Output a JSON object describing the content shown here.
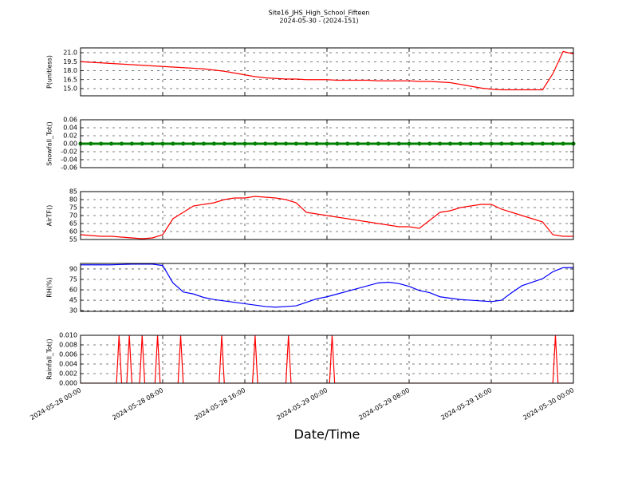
{
  "chart_data": [
    {
      "type": "line",
      "title": "Site16_JHS_High_School_Fifteen",
      "subtitle": "2024-05-30 - (2024-151)",
      "ylabel": "P(unitless)",
      "x": [
        "2024-05-28 00:00",
        "2024-05-28 01:00",
        "2024-05-28 02:00",
        "2024-05-28 03:00",
        "2024-05-28 04:00",
        "2024-05-28 05:00",
        "2024-05-28 06:00",
        "2024-05-28 07:00",
        "2024-05-28 08:00",
        "2024-05-28 09:00",
        "2024-05-28 10:00",
        "2024-05-28 11:00",
        "2024-05-28 12:00",
        "2024-05-28 13:00",
        "2024-05-28 14:00",
        "2024-05-28 15:00",
        "2024-05-28 16:00",
        "2024-05-28 17:00",
        "2024-05-28 18:00",
        "2024-05-28 19:00",
        "2024-05-28 20:00",
        "2024-05-28 21:00",
        "2024-05-28 22:00",
        "2024-05-28 23:00",
        "2024-05-29 00:00",
        "2024-05-29 01:00",
        "2024-05-29 02:00",
        "2024-05-29 03:00",
        "2024-05-29 04:00",
        "2024-05-29 05:00",
        "2024-05-29 06:00",
        "2024-05-29 07:00",
        "2024-05-29 08:00",
        "2024-05-29 09:00",
        "2024-05-29 10:00",
        "2024-05-29 11:00",
        "2024-05-29 12:00",
        "2024-05-29 13:00",
        "2024-05-29 14:00",
        "2024-05-29 15:00",
        "2024-05-29 16:00",
        "2024-05-29 17:00",
        "2024-05-29 18:00",
        "2024-05-29 19:00",
        "2024-05-29 20:00",
        "2024-05-29 21:00",
        "2024-05-29 22:00",
        "2024-05-29 23:00",
        "2024-05-30 00:00"
      ],
      "series": [
        {
          "name": "P",
          "color": "#ff0000",
          "values": [
            19.5,
            19.4,
            19.3,
            19.2,
            19.1,
            19.0,
            18.9,
            18.8,
            18.7,
            18.6,
            18.5,
            18.4,
            18.3,
            18.1,
            17.9,
            17.6,
            17.3,
            17.0,
            16.8,
            16.7,
            16.6,
            16.6,
            16.5,
            16.5,
            16.5,
            16.4,
            16.4,
            16.4,
            16.4,
            16.3,
            16.3,
            16.3,
            16.3,
            16.2,
            16.2,
            16.1,
            16.0,
            15.7,
            15.4,
            15.1,
            14.9,
            14.8,
            14.8,
            14.8,
            14.8,
            14.8,
            17.5,
            21.2,
            20.8
          ]
        }
      ],
      "xlim": [
        "2024-05-28 00:00",
        "2024-05-30 00:00"
      ],
      "xticks": [
        "2024-05-28 00:00",
        "2024-05-28 08:00",
        "2024-05-28 16:00",
        "2024-05-29 00:00",
        "2024-05-29 08:00",
        "2024-05-29 16:00",
        "2024-05-30 00:00"
      ],
      "ylim": [
        13.8,
        21.8
      ],
      "yticks": [
        {
          "value": 15,
          "label": "15.0"
        },
        16.5,
        {
          "value": 18,
          "label": "18.0"
        },
        19.5,
        {
          "value": 21,
          "label": "21.0"
        }
      ],
      "grid": true
    },
    {
      "type": "line",
      "ylabel": "Snowfall_Tot()",
      "markers": true,
      "x": [
        "2024-05-28 00:00",
        "2024-05-28 01:00",
        "2024-05-28 02:00",
        "2024-05-28 03:00",
        "2024-05-28 04:00",
        "2024-05-28 05:00",
        "2024-05-28 06:00",
        "2024-05-28 07:00",
        "2024-05-28 08:00",
        "2024-05-28 09:00",
        "2024-05-28 10:00",
        "2024-05-28 11:00",
        "2024-05-28 12:00",
        "2024-05-28 13:00",
        "2024-05-28 14:00",
        "2024-05-28 15:00",
        "2024-05-28 16:00",
        "2024-05-28 17:00",
        "2024-05-28 18:00",
        "2024-05-28 19:00",
        "2024-05-28 20:00",
        "2024-05-28 21:00",
        "2024-05-28 22:00",
        "2024-05-28 23:00",
        "2024-05-29 00:00",
        "2024-05-29 01:00",
        "2024-05-29 02:00",
        "2024-05-29 03:00",
        "2024-05-29 04:00",
        "2024-05-29 05:00",
        "2024-05-29 06:00",
        "2024-05-29 07:00",
        "2024-05-29 08:00",
        "2024-05-29 09:00",
        "2024-05-29 10:00",
        "2024-05-29 11:00",
        "2024-05-29 12:00",
        "2024-05-29 13:00",
        "2024-05-29 14:00",
        "2024-05-29 15:00",
        "2024-05-29 16:00",
        "2024-05-29 17:00",
        "2024-05-29 18:00",
        "2024-05-29 19:00",
        "2024-05-29 20:00",
        "2024-05-29 21:00",
        "2024-05-29 22:00",
        "2024-05-29 23:00",
        "2024-05-30 00:00"
      ],
      "series": [
        {
          "name": "Snowfall_Tot",
          "color": "#008000",
          "values": [
            0,
            0,
            0,
            0,
            0,
            0,
            0,
            0,
            0,
            0,
            0,
            0,
            0,
            0,
            0,
            0,
            0,
            0,
            0,
            0,
            0,
            0,
            0,
            0,
            0,
            0,
            0,
            0,
            0,
            0,
            0,
            0,
            0,
            0,
            0,
            0,
            0,
            0,
            0,
            0,
            0,
            0,
            0,
            0,
            0,
            0,
            0,
            0,
            0
          ]
        }
      ],
      "xlim": [
        "2024-05-28 00:00",
        "2024-05-30 00:00"
      ],
      "xticks": [
        "2024-05-28 00:00",
        "2024-05-28 08:00",
        "2024-05-28 16:00",
        "2024-05-29 00:00",
        "2024-05-29 08:00",
        "2024-05-29 16:00",
        "2024-05-30 00:00"
      ],
      "ylim": [
        -0.06,
        0.06
      ],
      "yticks": [
        0.06,
        0.04,
        0.02,
        {
          "value": 0,
          "label": "0.00"
        },
        -0.02,
        -0.04,
        -0.06
      ],
      "grid": true
    },
    {
      "type": "line",
      "ylabel": "AirTF()",
      "x": [
        "2024-05-28 00:00",
        "2024-05-28 01:00",
        "2024-05-28 02:00",
        "2024-05-28 03:00",
        "2024-05-28 04:00",
        "2024-05-28 05:00",
        "2024-05-28 06:00",
        "2024-05-28 07:00",
        "2024-05-28 08:00",
        "2024-05-28 09:00",
        "2024-05-28 10:00",
        "2024-05-28 11:00",
        "2024-05-28 12:00",
        "2024-05-28 13:00",
        "2024-05-28 14:00",
        "2024-05-28 15:00",
        "2024-05-28 16:00",
        "2024-05-28 17:00",
        "2024-05-28 18:00",
        "2024-05-28 19:00",
        "2024-05-28 20:00",
        "2024-05-28 21:00",
        "2024-05-28 22:00",
        "2024-05-28 23:00",
        "2024-05-29 00:00",
        "2024-05-29 01:00",
        "2024-05-29 02:00",
        "2024-05-29 03:00",
        "2024-05-29 04:00",
        "2024-05-29 05:00",
        "2024-05-29 06:00",
        "2024-05-29 07:00",
        "2024-05-29 08:00",
        "2024-05-29 09:00",
        "2024-05-29 10:00",
        "2024-05-29 11:00",
        "2024-05-29 12:00",
        "2024-05-29 13:00",
        "2024-05-29 14:00",
        "2024-05-29 15:00",
        "2024-05-29 16:00",
        "2024-05-29 17:00",
        "2024-05-29 18:00",
        "2024-05-29 19:00",
        "2024-05-29 20:00",
        "2024-05-29 21:00",
        "2024-05-29 22:00",
        "2024-05-29 23:00",
        "2024-05-30 00:00"
      ],
      "series": [
        {
          "name": "AirTF",
          "color": "#ff0000",
          "values": [
            58,
            57.5,
            57,
            57,
            56.5,
            56,
            55.5,
            56,
            58,
            68,
            72,
            76,
            77,
            78,
            80,
            81,
            81,
            82,
            81.5,
            81,
            80,
            78,
            72,
            71,
            70,
            69,
            68,
            67,
            66,
            65,
            64,
            63,
            63,
            62,
            67,
            72,
            73,
            75,
            76,
            77,
            77,
            74,
            72,
            70,
            68,
            66,
            58,
            57,
            57
          ]
        }
      ],
      "xlim": [
        "2024-05-28 00:00",
        "2024-05-30 00:00"
      ],
      "xticks": [
        "2024-05-28 00:00",
        "2024-05-28 08:00",
        "2024-05-28 16:00",
        "2024-05-29 00:00",
        "2024-05-29 08:00",
        "2024-05-29 16:00",
        "2024-05-30 00:00"
      ],
      "ylim": [
        55,
        85
      ],
      "yticks": [
        55,
        60,
        65,
        70,
        75,
        80,
        85
      ],
      "grid": true
    },
    {
      "type": "line",
      "ylabel": "RH(%)",
      "x": [
        "2024-05-28 00:00",
        "2024-05-28 01:00",
        "2024-05-28 02:00",
        "2024-05-28 03:00",
        "2024-05-28 04:00",
        "2024-05-28 05:00",
        "2024-05-28 06:00",
        "2024-05-28 07:00",
        "2024-05-28 08:00",
        "2024-05-28 09:00",
        "2024-05-28 10:00",
        "2024-05-28 11:00",
        "2024-05-28 12:00",
        "2024-05-28 13:00",
        "2024-05-28 14:00",
        "2024-05-28 15:00",
        "2024-05-28 16:00",
        "2024-05-28 17:00",
        "2024-05-28 18:00",
        "2024-05-28 19:00",
        "2024-05-28 20:00",
        "2024-05-28 21:00",
        "2024-05-28 22:00",
        "2024-05-28 23:00",
        "2024-05-29 00:00",
        "2024-05-29 01:00",
        "2024-05-29 02:00",
        "2024-05-29 03:00",
        "2024-05-29 04:00",
        "2024-05-29 05:00",
        "2024-05-29 06:00",
        "2024-05-29 07:00",
        "2024-05-29 08:00",
        "2024-05-29 09:00",
        "2024-05-29 10:00",
        "2024-05-29 11:00",
        "2024-05-29 12:00",
        "2024-05-29 13:00",
        "2024-05-29 14:00",
        "2024-05-29 15:00",
        "2024-05-29 16:00",
        "2024-05-29 17:00",
        "2024-05-29 18:00",
        "2024-05-29 19:00",
        "2024-05-29 20:00",
        "2024-05-29 21:00",
        "2024-05-29 22:00",
        "2024-05-29 23:00",
        "2024-05-30 00:00"
      ],
      "series": [
        {
          "name": "RH",
          "color": "#0000ff",
          "values": [
            96,
            96,
            96,
            96,
            96.5,
            97,
            97,
            97,
            95,
            70,
            57,
            54,
            49,
            46,
            44,
            42,
            40,
            38,
            36,
            35,
            36,
            37,
            42,
            47,
            50,
            54,
            58,
            62,
            66,
            70,
            71,
            69,
            65,
            59,
            56,
            50,
            48,
            46,
            45,
            44,
            43,
            45,
            56,
            66,
            71,
            76,
            86,
            92,
            92
          ]
        }
      ],
      "xlim": [
        "2024-05-28 00:00",
        "2024-05-30 00:00"
      ],
      "xticks": [
        "2024-05-28 00:00",
        "2024-05-28 08:00",
        "2024-05-28 16:00",
        "2024-05-29 00:00",
        "2024-05-29 08:00",
        "2024-05-29 16:00",
        "2024-05-30 00:00"
      ],
      "ylim": [
        29,
        98
      ],
      "yticks": [
        30,
        45,
        60,
        75,
        90
      ],
      "grid": true
    },
    {
      "type": "line",
      "ylabel": "Rainfall_Tot()",
      "xlabel": "Date/Time",
      "x": [
        "2024-05-28 00:00",
        "2024-05-28 03:30",
        "2024-05-28 03:45",
        "2024-05-28 04:00",
        "2024-05-28 04:30",
        "2024-05-28 04:45",
        "2024-05-28 05:00",
        "2024-05-28 05:45",
        "2024-05-28 06:00",
        "2024-05-28 06:15",
        "2024-05-28 07:15",
        "2024-05-28 07:30",
        "2024-05-28 07:45",
        "2024-05-28 09:30",
        "2024-05-28 09:45",
        "2024-05-28 10:00",
        "2024-05-28 13:30",
        "2024-05-28 13:45",
        "2024-05-28 14:00",
        "2024-05-28 16:45",
        "2024-05-28 17:00",
        "2024-05-28 17:15",
        "2024-05-28 20:00",
        "2024-05-28 20:15",
        "2024-05-28 20:30",
        "2024-05-29 00:15",
        "2024-05-29 00:30",
        "2024-05-29 00:45",
        "2024-05-29 22:00",
        "2024-05-29 22:15",
        "2024-05-29 22:30",
        "2024-05-30 00:00"
      ],
      "series": [
        {
          "name": "Rainfall_Tot",
          "color": "#ff0000",
          "values": [
            0,
            0,
            0.01,
            0,
            0,
            0.01,
            0,
            0,
            0.01,
            0,
            0,
            0.01,
            0,
            0,
            0.01,
            0,
            0,
            0.01,
            0,
            0,
            0.01,
            0,
            0,
            0.01,
            0,
            0,
            0.01,
            0,
            0,
            0.01,
            0,
            0
          ]
        }
      ],
      "xlim": [
        "2024-05-28 00:00",
        "2024-05-30 00:00"
      ],
      "xticks": [
        "2024-05-28 00:00",
        "2024-05-28 08:00",
        "2024-05-28 16:00",
        "2024-05-29 00:00",
        "2024-05-29 08:00",
        "2024-05-29 16:00",
        "2024-05-30 00:00"
      ],
      "ylim": [
        0,
        0.01
      ],
      "yticks": [
        {
          "value": 0,
          "label": "0.000"
        },
        {
          "value": 0.002,
          "label": "0.002"
        },
        {
          "value": 0.004,
          "label": "0.004"
        },
        {
          "value": 0.006,
          "label": "0.006"
        },
        {
          "value": 0.008,
          "label": "0.008"
        },
        {
          "value": 0.01,
          "label": "0.010"
        }
      ],
      "grid": true
    }
  ]
}
